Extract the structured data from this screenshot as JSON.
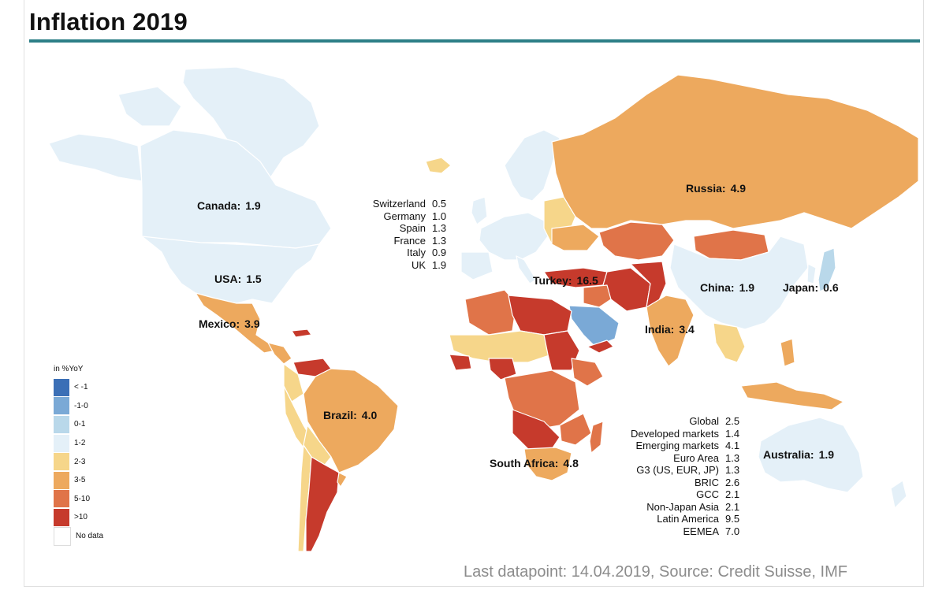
{
  "title": "Inflation 2019",
  "countries": [
    {
      "name": "Canada",
      "value": "1.9"
    },
    {
      "name": "USA",
      "value": "1.5"
    },
    {
      "name": "Mexico",
      "value": "3.9"
    },
    {
      "name": "Brazil",
      "value": "4.0"
    },
    {
      "name": "Russia",
      "value": "4.9"
    },
    {
      "name": "Turkey",
      "value": "16.5"
    },
    {
      "name": "China",
      "value": "1.9"
    },
    {
      "name": "Japan",
      "value": "0.6"
    },
    {
      "name": "India",
      "value": "3.4"
    },
    {
      "name": "South Africa",
      "value": "4.8"
    },
    {
      "name": "Australia",
      "value": "1.9"
    }
  ],
  "europe_table": [
    {
      "name": "Switzerland",
      "value": "0.5"
    },
    {
      "name": "Germany",
      "value": "1.0"
    },
    {
      "name": "Spain",
      "value": "1.3"
    },
    {
      "name": "France",
      "value": "1.3"
    },
    {
      "name": "Italy",
      "value": "0.9"
    },
    {
      "name": "UK",
      "value": "1.9"
    }
  ],
  "aggregates_table": [
    {
      "name": "Global",
      "value": "2.5"
    },
    {
      "name": "Developed markets",
      "value": "1.4"
    },
    {
      "name": "Emerging markets",
      "value": "4.1"
    },
    {
      "name": "Euro Area",
      "value": "1.3"
    },
    {
      "name": "G3 (US, EUR, JP)",
      "value": "1.3"
    },
    {
      "name": "BRIC",
      "value": "2.6"
    },
    {
      "name": "GCC",
      "value": "2.1"
    },
    {
      "name": "Non-Japan Asia",
      "value": "2.1"
    },
    {
      "name": "Latin America",
      "value": "9.5"
    },
    {
      "name": "EEMEA",
      "value": "7.0"
    }
  ],
  "legend": {
    "title": "in %YoY",
    "items": [
      {
        "label": "< -1",
        "color": "#3b6fb6"
      },
      {
        "label": "-1-0",
        "color": "#7aa9d6"
      },
      {
        "label": "0-1",
        "color": "#b9d8ea"
      },
      {
        "label": "1-2",
        "color": "#e4f0f8"
      },
      {
        "label": "2-3",
        "color": "#f6d68a"
      },
      {
        "label": "3-5",
        "color": "#eda95e"
      },
      {
        "label": "5-10",
        "color": "#e07449"
      },
      {
        "label": ">10",
        "color": "#c63a2c"
      },
      {
        "label": "No data",
        "color": "#ffffff"
      }
    ]
  },
  "source": "Last datapoint: 14.04.2019, Source: Credit Suisse, IMF",
  "colors": {
    "accent_rule": "#2d7f87",
    "ocean": "#ffffff",
    "border": "#ffffff"
  }
}
